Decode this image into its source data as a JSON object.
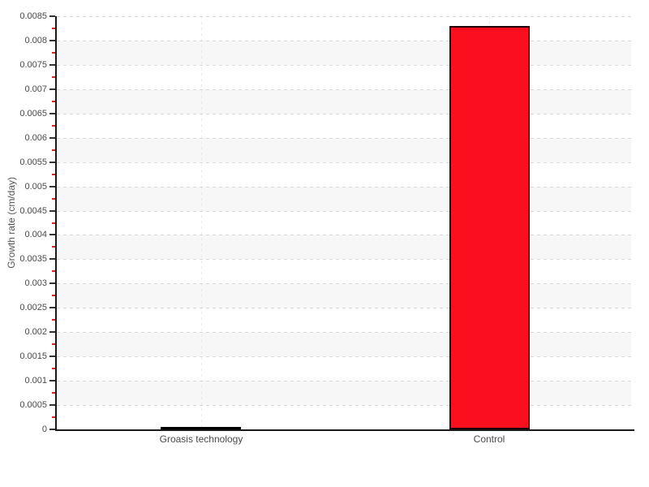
{
  "chart_data": {
    "type": "bar",
    "title": "",
    "categories": [
      "Groasis technology",
      "Control"
    ],
    "values": [
      5e-05,
      0.0083
    ],
    "bar_colors": [
      "#0d0d0d",
      "#fb0f1e"
    ],
    "bar_border_colors": [
      "#000000",
      "#210509"
    ],
    "xlabel": "",
    "ylabel": "Growth rate (cm/day)",
    "ylim": [
      0,
      0.0085
    ],
    "y_tick_step": 0.0005,
    "y_tick_labels": [
      "0",
      "0.0005",
      "0.001",
      "0.0015",
      "0.002",
      "0.0025",
      "0.003",
      "0.0035",
      "0.004",
      "0.0045",
      "0.005",
      "0.0055",
      "0.006",
      "0.0065",
      "0.007",
      "0.0075",
      "0.008",
      "0.0085"
    ],
    "grid": "horizontal-dashed-with-category-vertical-dashed",
    "legend": "none",
    "plot_bands": "alternating horizontal stripes",
    "colors": {
      "background": "#ffffff",
      "band_alt": "#f7f7f7",
      "grid_line": "#d9d9d9",
      "vertical_grid_line": "#eaeaea",
      "axis": "#1a1a1a",
      "major_tick": "#333333",
      "minor_tick": "#dd2222",
      "text": "#4a4a4a"
    }
  }
}
